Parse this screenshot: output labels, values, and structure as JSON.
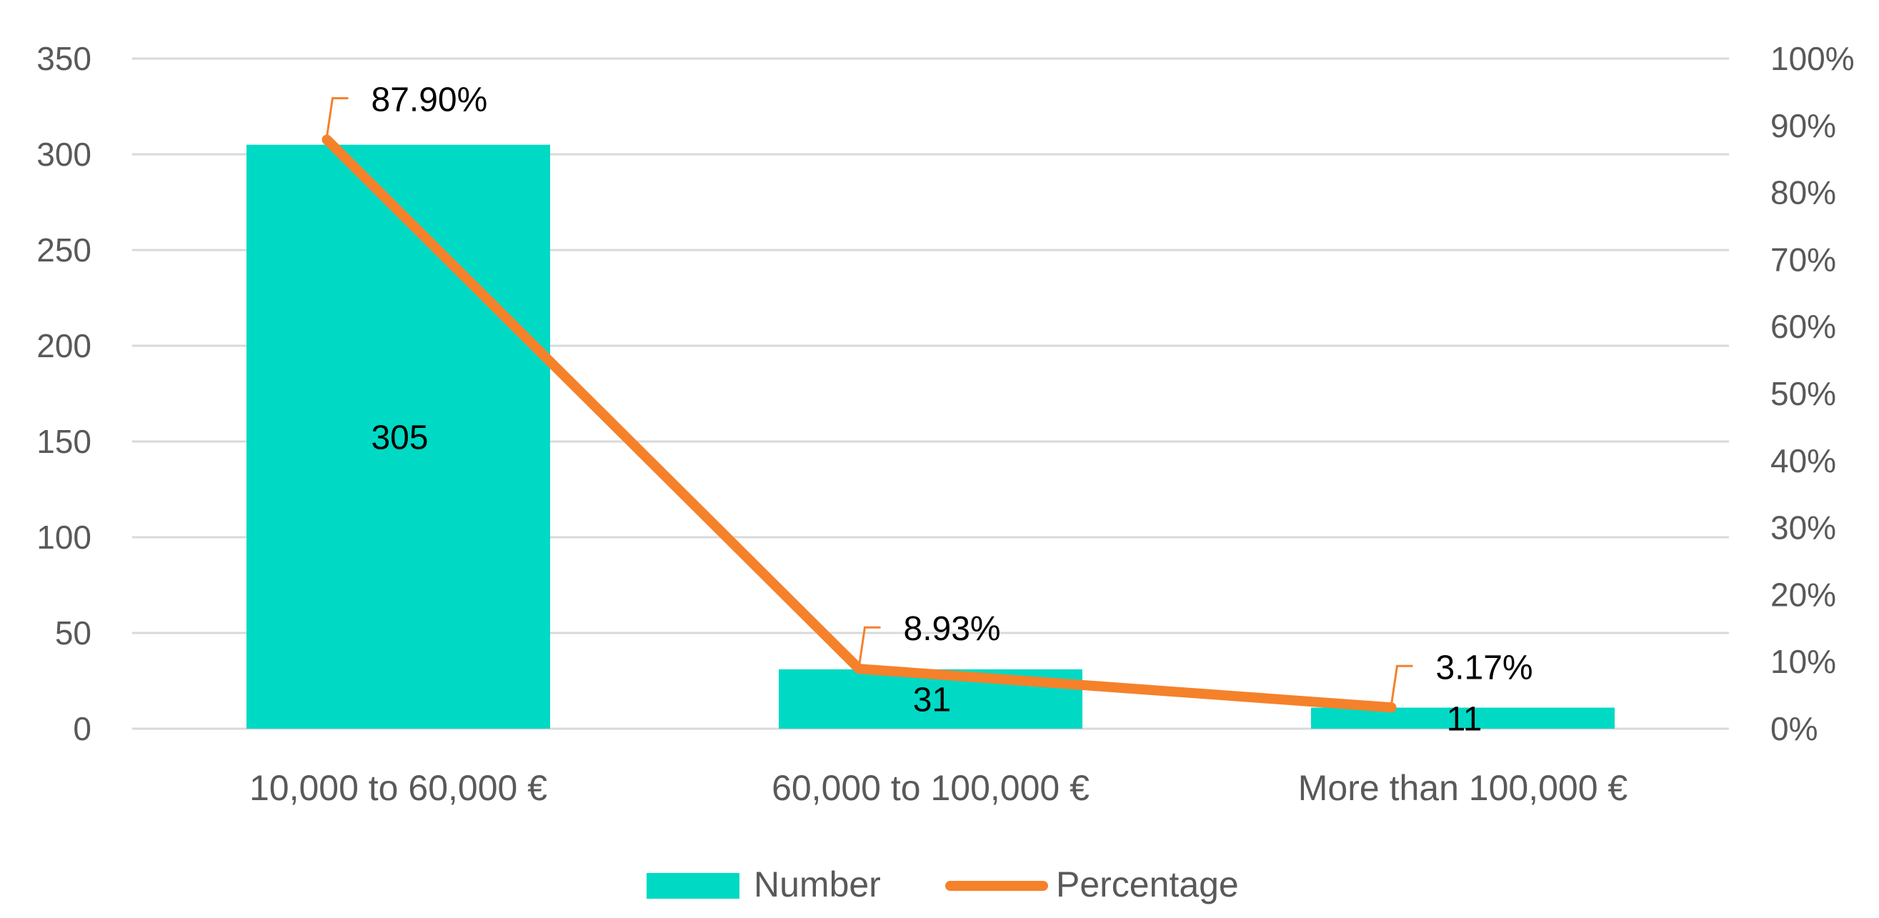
{
  "chart_data": {
    "type": "bar",
    "categories": [
      "10,000 to 60,000 €",
      "60,000 to 100,000 €",
      "More than 100,000 €"
    ],
    "series": [
      {
        "name": "Number",
        "type": "bar",
        "axis": "left",
        "values": [
          305,
          31,
          11
        ],
        "value_labels": [
          "305",
          "31",
          "11"
        ],
        "color": "#00D9C4"
      },
      {
        "name": "Percentage",
        "type": "line",
        "axis": "right",
        "values": [
          87.9,
          8.93,
          3.17
        ],
        "value_labels": [
          "87.90%",
          "8.93%",
          "3.17%"
        ],
        "color": "#F5812B"
      }
    ],
    "y_left": {
      "range": [
        0,
        350
      ],
      "ticks": [
        0,
        50,
        100,
        150,
        200,
        250,
        300,
        350
      ],
      "tick_labels": [
        "0",
        "50",
        "100",
        "150",
        "200",
        "250",
        "300",
        "350"
      ]
    },
    "y_right": {
      "range": [
        0,
        100
      ],
      "ticks": [
        0,
        10,
        20,
        30,
        40,
        50,
        60,
        70,
        80,
        90,
        100
      ],
      "tick_labels": [
        "0%",
        "10%",
        "20%",
        "30%",
        "40%",
        "50%",
        "60%",
        "70%",
        "80%",
        "90%",
        "100%"
      ]
    },
    "grid": true,
    "gridline_color": "#D9D9D9",
    "axis_label_color": "#595959",
    "legend_position": "bottom"
  }
}
